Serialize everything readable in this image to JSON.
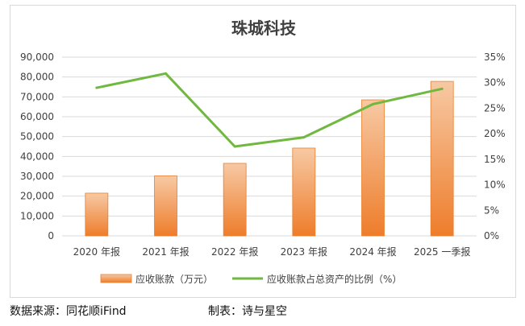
{
  "chart_data": {
    "type": "bar+line",
    "title": "珠城科技",
    "categories": [
      "2020 年报",
      "2021 年报",
      "2022 年报",
      "2023 年报",
      "2024 年报",
      "2025 一季报"
    ],
    "series": [
      {
        "name": "应收账款（万元）",
        "type": "bar",
        "axis": "left",
        "values": [
          21500,
          30200,
          36500,
          44200,
          68500,
          77800
        ]
      },
      {
        "name": "应收账款占总资产的比例（%）",
        "type": "line",
        "axis": "right",
        "values": [
          29.0,
          31.8,
          17.5,
          19.3,
          25.8,
          28.8
        ]
      }
    ],
    "y_left": {
      "lim": [
        0,
        90000
      ],
      "ticks": [
        "0",
        "10,000",
        "20,000",
        "30,000",
        "40,000",
        "50,000",
        "60,000",
        "70,000",
        "80,000",
        "90,000"
      ]
    },
    "y_right": {
      "lim": [
        0,
        35
      ],
      "ticks": [
        "0%",
        "5%",
        "10%",
        "15%",
        "20%",
        "25%",
        "30%",
        "35%"
      ]
    },
    "grid": true,
    "legend_position": "bottom",
    "colors": {
      "bar_top": "#f7c9a4",
      "bar_bottom": "#ee7d2b",
      "bar_edge": "#e8802f",
      "line": "#70b83f",
      "grid": "#d9d9d9"
    }
  },
  "footer": {
    "source": "数据来源：同花顺iFind",
    "maker": "制表：诗与星空"
  }
}
